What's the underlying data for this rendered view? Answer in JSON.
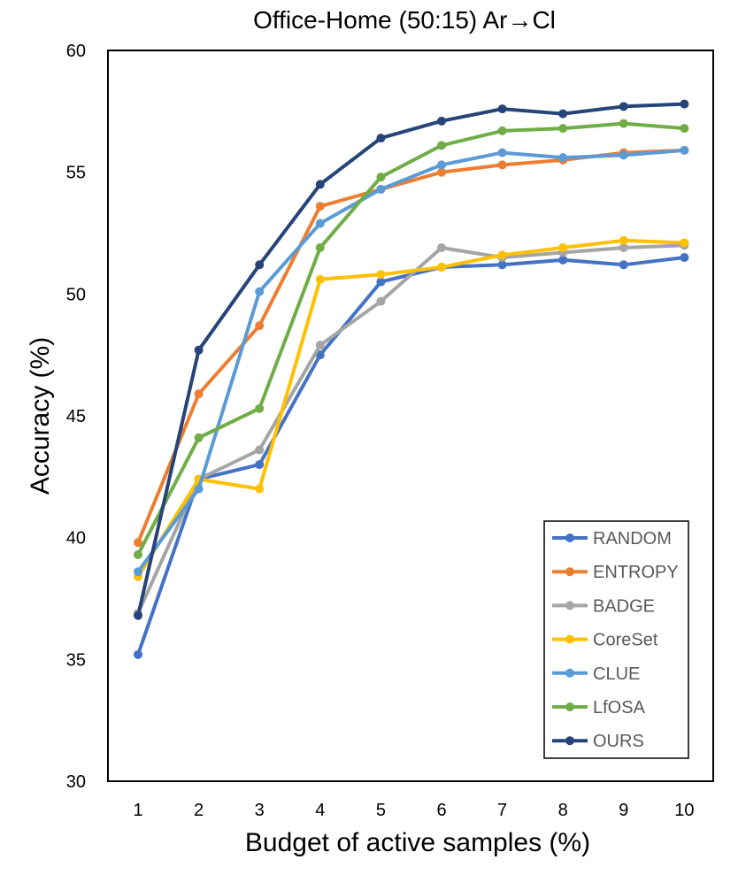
{
  "chart_data": {
    "type": "line",
    "title": "Office-Home (50:15) Ar→Cl",
    "xlabel": "Budget of active samples (%)",
    "ylabel": "Accuracy (%)",
    "x": [
      1,
      2,
      3,
      4,
      5,
      6,
      7,
      8,
      9,
      10
    ],
    "x_tick_labels": [
      "1",
      "2",
      "3",
      "4",
      "5",
      "6",
      "7",
      "8",
      "9",
      "10"
    ],
    "ylim": [
      30,
      60
    ],
    "y_ticks": [
      30,
      35,
      40,
      45,
      50,
      55,
      60
    ],
    "y_tick_labels": [
      "30",
      "35",
      "40",
      "45",
      "50",
      "55",
      "60"
    ],
    "grid": false,
    "legend_position": "bottom-right",
    "series": [
      {
        "name": "RANDOM",
        "color": "#4472C4",
        "values": [
          35.2,
          42.4,
          43.0,
          47.5,
          50.5,
          51.1,
          51.2,
          51.4,
          51.2,
          51.5
        ]
      },
      {
        "name": "ENTROPY",
        "color": "#ED7D31",
        "values": [
          39.8,
          45.9,
          48.7,
          53.6,
          54.3,
          55.0,
          55.3,
          55.5,
          55.8,
          55.9
        ]
      },
      {
        "name": "BADGE",
        "color": "#A5A5A5",
        "values": [
          36.9,
          42.4,
          43.6,
          47.9,
          49.7,
          51.9,
          51.5,
          51.7,
          51.9,
          52.0
        ]
      },
      {
        "name": "CoreSet",
        "color": "#FFC000",
        "values": [
          38.4,
          42.4,
          42.0,
          50.6,
          50.8,
          51.1,
          51.6,
          51.9,
          52.2,
          52.1
        ]
      },
      {
        "name": "CLUE",
        "color": "#5B9BD5",
        "values": [
          38.6,
          42.0,
          50.1,
          52.9,
          54.3,
          55.3,
          55.8,
          55.6,
          55.7,
          55.9
        ]
      },
      {
        "name": "LfOSA",
        "color": "#70AD47",
        "values": [
          39.3,
          44.1,
          45.3,
          51.9,
          54.8,
          56.1,
          56.7,
          56.8,
          57.0,
          56.8
        ]
      },
      {
        "name": "OURS",
        "color": "#264478",
        "values": [
          36.8,
          47.7,
          51.2,
          54.5,
          56.4,
          57.1,
          57.6,
          57.4,
          57.7,
          57.8
        ]
      }
    ]
  }
}
